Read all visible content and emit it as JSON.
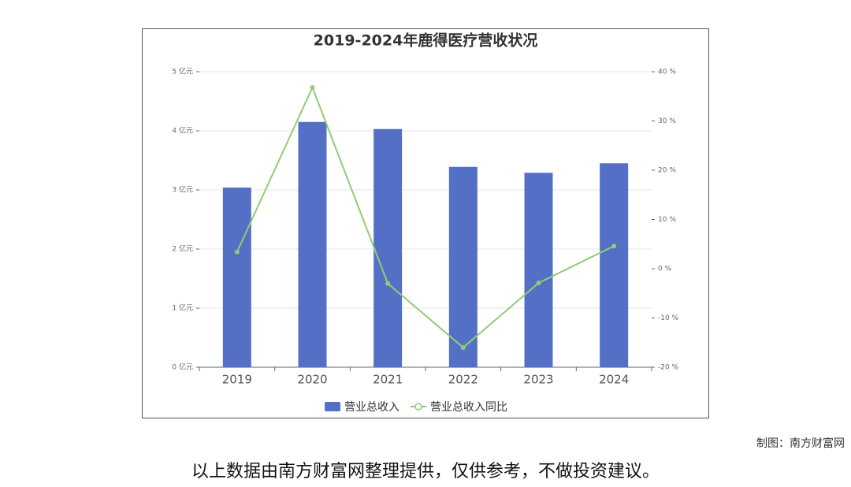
{
  "chart_data": {
    "type": "combo",
    "title": "2019-2024年鹿得医疗营收状况",
    "categories": [
      "2019",
      "2020",
      "2021",
      "2022",
      "2023",
      "2024"
    ],
    "series": [
      {
        "name": "营业总收入",
        "type": "bar",
        "color": "#5470c6",
        "values": [
          3.04,
          4.15,
          4.03,
          3.39,
          3.29,
          3.45
        ]
      },
      {
        "name": "营业总收入同比",
        "type": "line",
        "axis": "y2",
        "color": "#91cc75",
        "values": [
          3.4,
          36.8,
          -3.0,
          -16.0,
          -2.9,
          4.6
        ]
      }
    ],
    "ylim": [
      0,
      5
    ],
    "yticks": [
      {
        "value": 0,
        "label": "0 亿元"
      },
      {
        "value": 1,
        "label": "1 亿元"
      },
      {
        "value": 2,
        "label": "2 亿元"
      },
      {
        "value": 3,
        "label": "3 亿元"
      },
      {
        "value": 4,
        "label": "4 亿元"
      },
      {
        "value": 5,
        "label": "5 亿元"
      }
    ],
    "y2lim": [
      -20,
      40
    ],
    "y2ticks": [
      {
        "value": -20,
        "label": "-20 %"
      },
      {
        "value": -10,
        "label": "-10 %"
      },
      {
        "value": 0,
        "label": "0 %"
      },
      {
        "value": 10,
        "label": "10 %"
      },
      {
        "value": 20,
        "label": "20 %"
      },
      {
        "value": 30,
        "label": "30 %"
      },
      {
        "value": 40,
        "label": "40 %"
      }
    ],
    "grid": true
  },
  "footer": {
    "credit": "制图：南方财富网",
    "disclaimer": "以上数据由南方财富网整理提供，仅供参考，不做投资建议。"
  }
}
